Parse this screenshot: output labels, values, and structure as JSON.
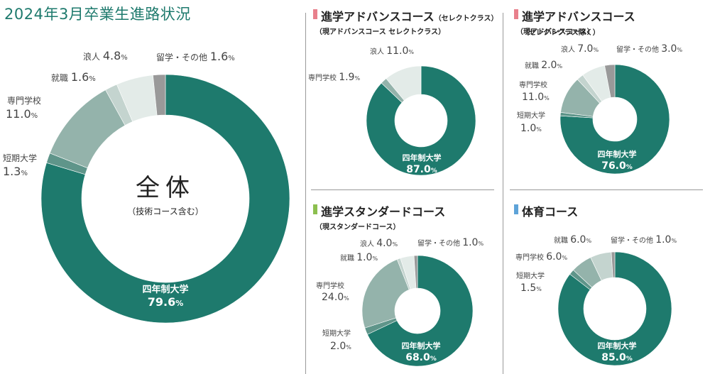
{
  "page_title": "2024年3月卒業生進路状況",
  "colors": {
    "four_year": "#1e7a6d",
    "junior_college": "#5f958a",
    "vocational": "#94b3ab",
    "employment": "#c4d4cf",
    "ronin": "#e3ebe8",
    "other": "#999999",
    "marker_pink": "#e8808c",
    "marker_green": "#8cbf4f",
    "marker_blue": "#5ea3d8"
  },
  "panels": {
    "overall": {
      "center_title": "全体",
      "center_sub": "（技術コース含む）"
    },
    "adv_select": {
      "title": "進学アドバンスコース",
      "title_small": "（セレクトクラス）",
      "sub": "（現アドバンスコース セレクトクラス）"
    },
    "adv_excl": {
      "title": "進学アドバンスコース",
      "title_small": "（セレクトクラス除く）",
      "sub": "（現アドバンスコース）"
    },
    "standard": {
      "title": "進学スタンダードコース",
      "sub": "（現スタンダードコース）"
    },
    "pe": {
      "title": "体育コース"
    }
  },
  "chart_data": [
    {
      "id": "overall",
      "type": "pie",
      "title": "全体",
      "categories": [
        "四年制大学",
        "短期大学",
        "専門学校",
        "就職",
        "浪人",
        "留学・その他"
      ],
      "values": [
        79.6,
        1.3,
        11.0,
        1.6,
        4.8,
        1.6
      ],
      "value_labels": [
        "79.6",
        "1.3",
        "11.0",
        "1.6",
        "4.8",
        "1.6"
      ],
      "unit": "%"
    },
    {
      "id": "adv_select",
      "type": "pie",
      "title": "進学アドバンスコース（セレクトクラス）",
      "categories": [
        "四年制大学",
        "専門学校",
        "浪人"
      ],
      "values": [
        87.0,
        1.9,
        11.0
      ],
      "value_labels": [
        "87.0",
        "1.9",
        "11.0"
      ],
      "unit": "%"
    },
    {
      "id": "adv_excl",
      "type": "pie",
      "title": "進学アドバンスコース（セレクトクラス除く）",
      "categories": [
        "四年制大学",
        "短期大学",
        "専門学校",
        "就職",
        "浪人",
        "留学・その他"
      ],
      "values": [
        76.0,
        1.0,
        11.0,
        2.0,
        7.0,
        3.0
      ],
      "value_labels": [
        "76.0",
        "1.0",
        "11.0",
        "2.0",
        "7.0",
        "3.0"
      ],
      "unit": "%"
    },
    {
      "id": "standard",
      "type": "pie",
      "title": "進学スタンダードコース",
      "categories": [
        "四年制大学",
        "短期大学",
        "専門学校",
        "就職",
        "浪人",
        "留学・その他"
      ],
      "values": [
        68.0,
        2.0,
        24.0,
        1.0,
        4.0,
        1.0
      ],
      "value_labels": [
        "68.0",
        "2.0",
        "24.0",
        "1.0",
        "4.0",
        "1.0"
      ],
      "unit": "%"
    },
    {
      "id": "pe",
      "type": "pie",
      "title": "体育コース",
      "categories": [
        "四年制大学",
        "短期大学",
        "専門学校",
        "就職",
        "留学・その他"
      ],
      "values": [
        85.0,
        1.5,
        6.0,
        6.0,
        1.0
      ],
      "value_labels": [
        "85.0",
        "1.5",
        "6.0",
        "6.0",
        "1.0"
      ],
      "unit": "%"
    }
  ]
}
